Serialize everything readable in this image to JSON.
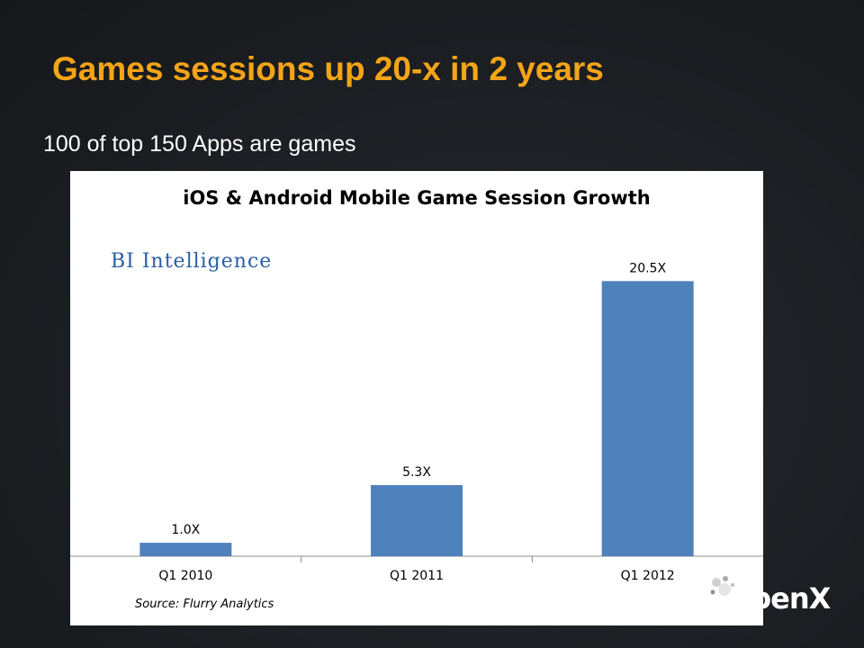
{
  "slide": {
    "title": "Games sessions up 20-x in 2 years",
    "subtitle": "100 of top 150 Apps are games"
  },
  "chart_data": {
    "type": "bar",
    "title": "iOS & Android Mobile Game Session Growth",
    "categories": [
      "Q1 2010",
      "Q1 2011",
      "Q1 2012"
    ],
    "values": [
      1.0,
      5.3,
      20.5
    ],
    "data_labels": [
      "1.0X",
      "5.3X",
      "20.5X"
    ],
    "ylim": [
      0,
      22
    ],
    "grid": false,
    "legend": "none",
    "bar_color": "#4f81bd",
    "brand": "BI Intelligence",
    "source": "Source: Flurry Analytics"
  },
  "logo": {
    "text": "OpenX"
  },
  "colors": {
    "title": "#f4a418",
    "bar": "#4f81bd",
    "brand": "#2a5fa5"
  }
}
